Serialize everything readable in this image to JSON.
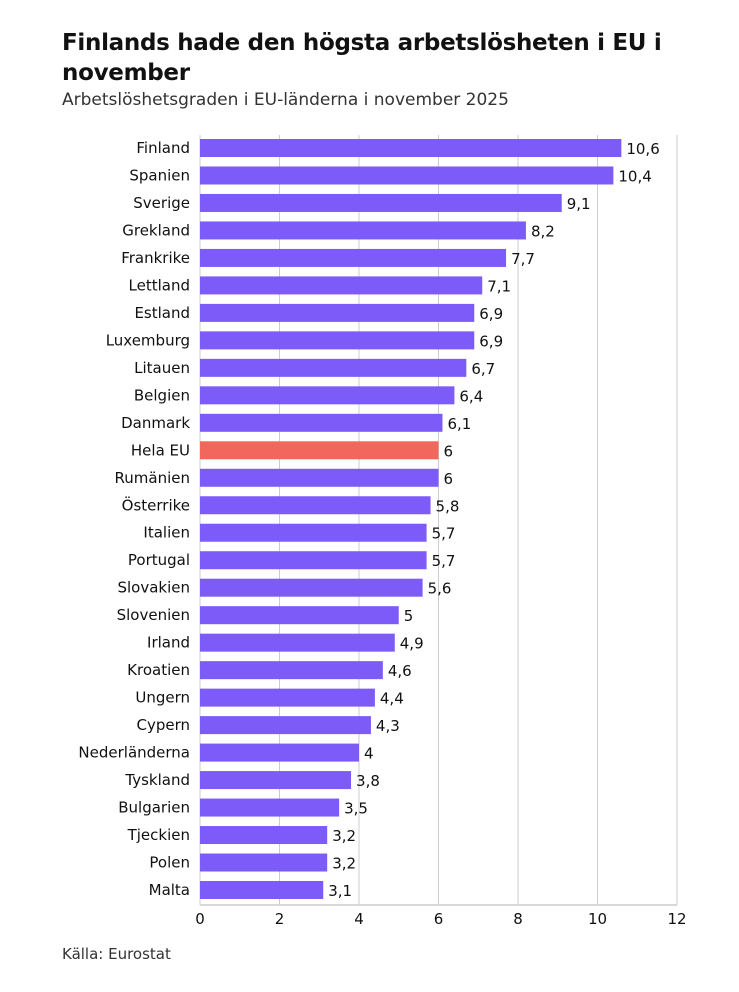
{
  "chart_data": {
    "type": "bar",
    "orientation": "horizontal",
    "title": "Finlands hade den högsta arbetslösheten i EU i november",
    "subtitle": "Arbetslöshetsgraden i EU-länderna i november 2025",
    "source": "Källa: Eurostat",
    "xlabel": "",
    "ylabel": "",
    "xlim": [
      0,
      12
    ],
    "xticks": [
      0,
      2,
      4,
      6,
      8,
      10,
      12
    ],
    "grid": true,
    "highlight_category": "Hela EU",
    "colors": {
      "default": "#7d5bf8",
      "highlight": "#f2675b",
      "grid": "#cccccc"
    },
    "categories": [
      "Finland",
      "Spanien",
      "Sverige",
      "Grekland",
      "Frankrike",
      "Lettland",
      "Estland",
      "Luxemburg",
      "Litauen",
      "Belgien",
      "Danmark",
      "Hela EU",
      "Rumänien",
      "Österrike",
      "Italien",
      "Portugal",
      "Slovakien",
      "Slovenien",
      "Irland",
      "Kroatien",
      "Ungern",
      "Cypern",
      "Nederländerna",
      "Tyskland",
      "Bulgarien",
      "Tjeckien",
      "Polen",
      "Malta"
    ],
    "values": [
      10.6,
      10.4,
      9.1,
      8.2,
      7.7,
      7.1,
      6.9,
      6.9,
      6.7,
      6.4,
      6.1,
      6,
      6,
      5.8,
      5.7,
      5.7,
      5.6,
      5,
      4.9,
      4.6,
      4.4,
      4.3,
      4,
      3.8,
      3.5,
      3.2,
      3.2,
      3.1
    ]
  }
}
